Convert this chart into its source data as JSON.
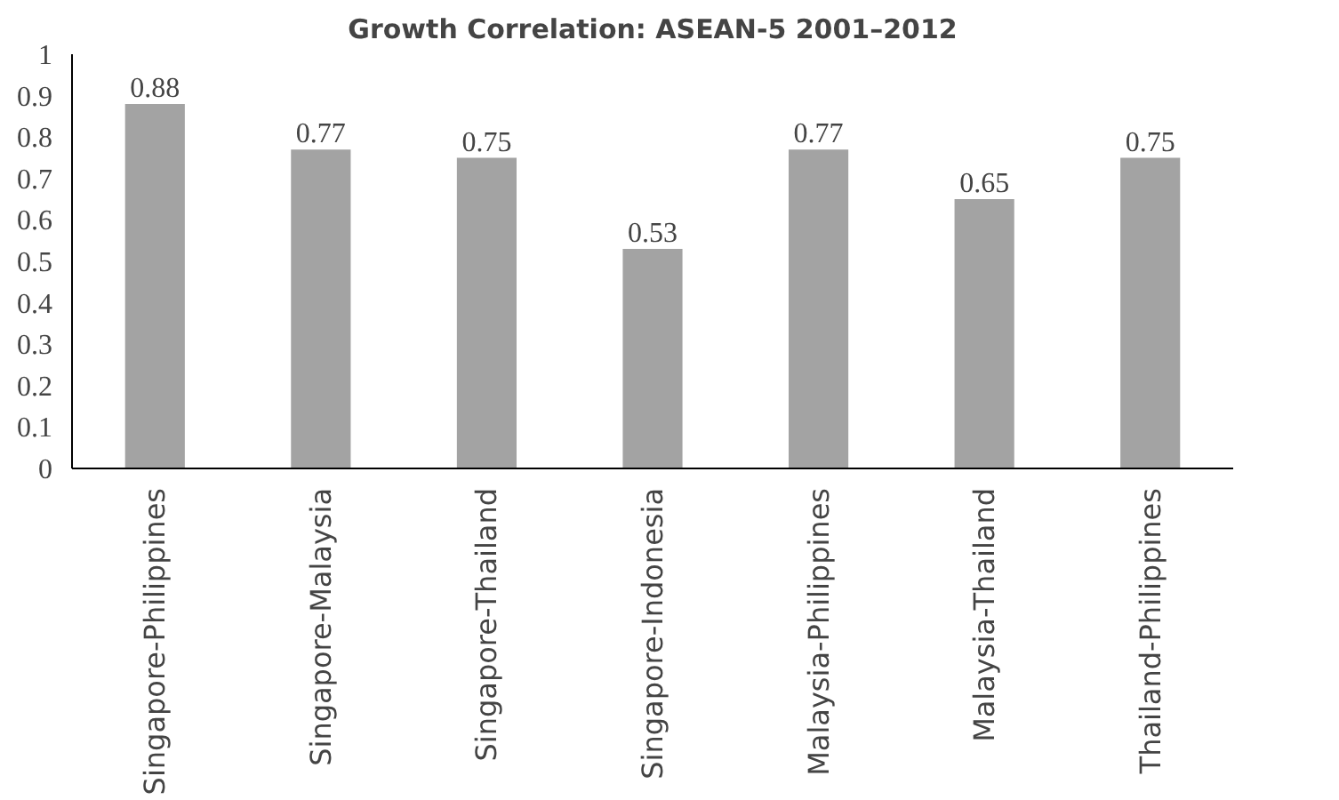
{
  "chart_data": {
    "type": "bar",
    "title": "Growth Correlation: ASEAN-5 2001–2012",
    "categories": [
      "Singapore-Philippines",
      "Singapore-Malaysia",
      "Singapore-Thailand",
      "Singapore-Indonesia",
      "Malaysia-Philippines",
      "Malaysia-Thailand",
      "Thailand-Philippines"
    ],
    "values": [
      0.88,
      0.77,
      0.75,
      0.53,
      0.77,
      0.65,
      0.75
    ],
    "color": "#a3a3a3",
    "ylim": [
      0,
      1
    ],
    "yticks": [
      0,
      0.1,
      0.2,
      0.3,
      0.4,
      0.5,
      0.6,
      0.7,
      0.8,
      0.9,
      1
    ],
    "data_labels": true,
    "grid": false
  }
}
